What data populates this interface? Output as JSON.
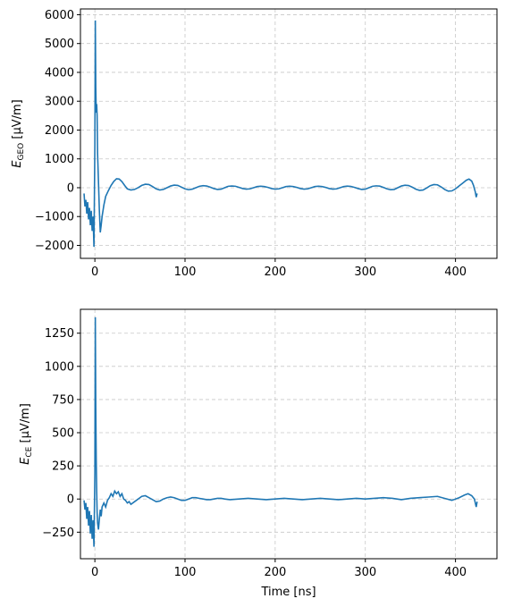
{
  "chart_data": [
    {
      "type": "line",
      "title": "",
      "ylabel_symbol": "E",
      "ylabel_subscript": "GEO",
      "ylabel_unit": " [µV/m]",
      "xlabel": "",
      "xlim": [
        -16,
        446
      ],
      "ylim": [
        -2450,
        6200
      ],
      "xticks": [
        0,
        100,
        200,
        300,
        400
      ],
      "xtick_labels": [
        "0",
        "100",
        "200",
        "300",
        "400"
      ],
      "yticks": [
        -2000,
        -1000,
        0,
        1000,
        2000,
        3000,
        4000,
        5000,
        6000
      ],
      "ytick_labels": [
        "−2000",
        "−1000",
        "0",
        "1000",
        "2000",
        "3000",
        "4000",
        "5000",
        "6000"
      ],
      "grid": true,
      "color": "#1f77b4",
      "series": [
        {
          "values": [
            [
              -12,
              -200
            ],
            [
              -11,
              -650
            ],
            [
              -10,
              -420
            ],
            [
              -9,
              -900
            ],
            [
              -8,
              -500
            ],
            [
              -7,
              -1100
            ],
            [
              -6,
              -700
            ],
            [
              -5,
              -1300
            ],
            [
              -4,
              -800
            ],
            [
              -3,
              -1500
            ],
            [
              -2,
              -1000
            ],
            [
              -1,
              -2050
            ],
            [
              0,
              1500
            ],
            [
              0.5,
              5800
            ],
            [
              1,
              3500
            ],
            [
              1.5,
              2600
            ],
            [
              2,
              2900
            ],
            [
              2.5,
              2500
            ],
            [
              3,
              1200
            ],
            [
              4,
              200
            ],
            [
              5,
              -800
            ],
            [
              6,
              -1550
            ],
            [
              7,
              -1300
            ],
            [
              8,
              -1000
            ],
            [
              10,
              -600
            ],
            [
              12,
              -300
            ],
            [
              15,
              -100
            ],
            [
              18,
              80
            ],
            [
              21,
              220
            ],
            [
              24,
              310
            ],
            [
              27,
              300
            ],
            [
              30,
              210
            ],
            [
              33,
              80
            ],
            [
              36,
              -40
            ],
            [
              40,
              -80
            ],
            [
              44,
              -60
            ],
            [
              48,
              0
            ],
            [
              52,
              80
            ],
            [
              56,
              120
            ],
            [
              60,
              110
            ],
            [
              64,
              40
            ],
            [
              68,
              -40
            ],
            [
              72,
              -80
            ],
            [
              76,
              -60
            ],
            [
              80,
              0
            ],
            [
              84,
              60
            ],
            [
              88,
              90
            ],
            [
              92,
              80
            ],
            [
              96,
              20
            ],
            [
              100,
              -40
            ],
            [
              104,
              -70
            ],
            [
              108,
              -50
            ],
            [
              112,
              0
            ],
            [
              116,
              50
            ],
            [
              120,
              70
            ],
            [
              124,
              60
            ],
            [
              128,
              20
            ],
            [
              132,
              -30
            ],
            [
              136,
              -60
            ],
            [
              140,
              -50
            ],
            [
              144,
              0
            ],
            [
              148,
              50
            ],
            [
              152,
              60
            ],
            [
              156,
              50
            ],
            [
              160,
              10
            ],
            [
              164,
              -30
            ],
            [
              168,
              -50
            ],
            [
              172,
              -40
            ],
            [
              176,
              0
            ],
            [
              180,
              40
            ],
            [
              184,
              50
            ],
            [
              188,
              40
            ],
            [
              192,
              10
            ],
            [
              196,
              -30
            ],
            [
              200,
              -50
            ],
            [
              204,
              -40
            ],
            [
              208,
              0
            ],
            [
              212,
              40
            ],
            [
              216,
              50
            ],
            [
              220,
              40
            ],
            [
              224,
              10
            ],
            [
              228,
              -30
            ],
            [
              232,
              -50
            ],
            [
              236,
              -40
            ],
            [
              240,
              0
            ],
            [
              244,
              40
            ],
            [
              248,
              50
            ],
            [
              252,
              40
            ],
            [
              256,
              10
            ],
            [
              260,
              -30
            ],
            [
              264,
              -50
            ],
            [
              268,
              -40
            ],
            [
              272,
              0
            ],
            [
              276,
              40
            ],
            [
              280,
              55
            ],
            [
              284,
              45
            ],
            [
              288,
              10
            ],
            [
              292,
              -30
            ],
            [
              296,
              -60
            ],
            [
              300,
              -50
            ],
            [
              304,
              0
            ],
            [
              308,
              50
            ],
            [
              312,
              65
            ],
            [
              316,
              55
            ],
            [
              320,
              10
            ],
            [
              324,
              -40
            ],
            [
              328,
              -70
            ],
            [
              332,
              -60
            ],
            [
              336,
              0
            ],
            [
              340,
              60
            ],
            [
              344,
              85
            ],
            [
              348,
              75
            ],
            [
              352,
              20
            ],
            [
              356,
              -50
            ],
            [
              360,
              -90
            ],
            [
              364,
              -80
            ],
            [
              368,
              -10
            ],
            [
              372,
              70
            ],
            [
              376,
              110
            ],
            [
              380,
              100
            ],
            [
              384,
              30
            ],
            [
              388,
              -60
            ],
            [
              392,
              -120
            ],
            [
              396,
              -110
            ],
            [
              400,
              -40
            ],
            [
              404,
              60
            ],
            [
              408,
              160
            ],
            [
              412,
              260
            ],
            [
              415,
              300
            ],
            [
              418,
              230
            ],
            [
              420,
              80
            ],
            [
              422,
              -150
            ],
            [
              423,
              -330
            ],
            [
              424,
              -200
            ]
          ]
        }
      ]
    },
    {
      "type": "line",
      "title": "",
      "ylabel_symbol": "E",
      "ylabel_subscript": "CE",
      "ylabel_unit": " [µV/m]",
      "xlabel": "Time [ns]",
      "xlim": [
        -16,
        446
      ],
      "ylim": [
        -450,
        1430
      ],
      "xticks": [
        0,
        100,
        200,
        300,
        400
      ],
      "xtick_labels": [
        "0",
        "100",
        "200",
        "300",
        "400"
      ],
      "yticks": [
        -250,
        0,
        250,
        500,
        750,
        1000,
        1250
      ],
      "ytick_labels": [
        "−250",
        "0",
        "250",
        "500",
        "750",
        "1000",
        "1250"
      ],
      "grid": true,
      "color": "#1f77b4",
      "series": [
        {
          "values": [
            [
              -12,
              -10
            ],
            [
              -11,
              -80
            ],
            [
              -10,
              -30
            ],
            [
              -9,
              -150
            ],
            [
              -8,
              -60
            ],
            [
              -7,
              -200
            ],
            [
              -6,
              -90
            ],
            [
              -5,
              -260
            ],
            [
              -4,
              -120
            ],
            [
              -3,
              -300
            ],
            [
              -2,
              -160
            ],
            [
              -1,
              -360
            ],
            [
              0,
              200
            ],
            [
              0.5,
              1370
            ],
            [
              1,
              700
            ],
            [
              1.5,
              300
            ],
            [
              2,
              60
            ],
            [
              2.5,
              -100
            ],
            [
              3,
              -180
            ],
            [
              4,
              -230
            ],
            [
              5,
              -150
            ],
            [
              6,
              -80
            ],
            [
              7,
              -130
            ],
            [
              8,
              -60
            ],
            [
              10,
              -30
            ],
            [
              12,
              -60
            ],
            [
              14,
              -10
            ],
            [
              16,
              10
            ],
            [
              18,
              40
            ],
            [
              20,
              20
            ],
            [
              22,
              60
            ],
            [
              24,
              40
            ],
            [
              26,
              55
            ],
            [
              28,
              20
            ],
            [
              30,
              40
            ],
            [
              32,
              0
            ],
            [
              34,
              -10
            ],
            [
              36,
              -30
            ],
            [
              38,
              -20
            ],
            [
              40,
              -40
            ],
            [
              44,
              -20
            ],
            [
              48,
              0
            ],
            [
              52,
              20
            ],
            [
              56,
              25
            ],
            [
              60,
              10
            ],
            [
              64,
              -5
            ],
            [
              68,
              -20
            ],
            [
              72,
              -15
            ],
            [
              76,
              0
            ],
            [
              80,
              10
            ],
            [
              84,
              15
            ],
            [
              88,
              10
            ],
            [
              92,
              0
            ],
            [
              96,
              -10
            ],
            [
              100,
              -10
            ],
            [
              104,
              0
            ],
            [
              108,
              10
            ],
            [
              112,
              10
            ],
            [
              116,
              5
            ],
            [
              120,
              0
            ],
            [
              124,
              -5
            ],
            [
              128,
              -5
            ],
            [
              132,
              0
            ],
            [
              136,
              5
            ],
            [
              140,
              5
            ],
            [
              144,
              0
            ],
            [
              150,
              -5
            ],
            [
              160,
              0
            ],
            [
              170,
              5
            ],
            [
              180,
              0
            ],
            [
              190,
              -5
            ],
            [
              200,
              0
            ],
            [
              210,
              5
            ],
            [
              220,
              0
            ],
            [
              230,
              -5
            ],
            [
              240,
              0
            ],
            [
              250,
              5
            ],
            [
              260,
              0
            ],
            [
              270,
              -5
            ],
            [
              280,
              0
            ],
            [
              290,
              5
            ],
            [
              300,
              0
            ],
            [
              310,
              5
            ],
            [
              320,
              10
            ],
            [
              330,
              5
            ],
            [
              340,
              -5
            ],
            [
              350,
              5
            ],
            [
              360,
              10
            ],
            [
              370,
              15
            ],
            [
              380,
              20
            ],
            [
              388,
              5
            ],
            [
              396,
              -10
            ],
            [
              404,
              10
            ],
            [
              410,
              30
            ],
            [
              414,
              40
            ],
            [
              418,
              25
            ],
            [
              421,
              0
            ],
            [
              422,
              -30
            ],
            [
              423,
              -60
            ],
            [
              424,
              -20
            ]
          ]
        }
      ]
    }
  ]
}
